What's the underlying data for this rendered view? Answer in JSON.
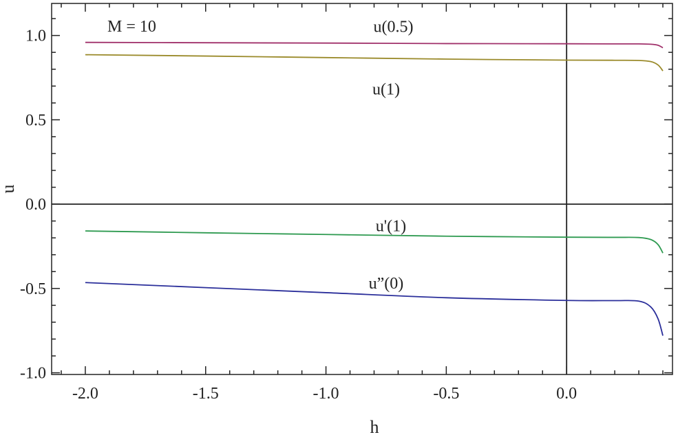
{
  "chart_data": {
    "type": "line",
    "title": "",
    "xlabel": "h",
    "ylabel": "u",
    "xlim": [
      -2.14,
      0.44
    ],
    "ylim": [
      -1.01,
      1.19
    ],
    "xticks": [
      -2.0,
      -1.5,
      -1.0,
      -0.5,
      0.0
    ],
    "xtick_labels": [
      "-2.0",
      "-1.5",
      "-1.0",
      "-0.5",
      "0.0"
    ],
    "yticks": [
      1.0,
      0.5,
      0.0,
      -0.5,
      -1.0
    ],
    "ytick_labels": [
      "1.0",
      "0.5",
      "0.0",
      "-0.5",
      "-1.0"
    ],
    "grid": false,
    "zero_lines": true,
    "annotation": "M = 10",
    "x": [
      -2.0,
      -1.5,
      -1.0,
      -0.5,
      0.0,
      0.2,
      0.3,
      0.35,
      0.38,
      0.4
    ],
    "series": [
      {
        "name": "u(0.5)",
        "color": "#a0306a",
        "values": [
          0.959,
          0.957,
          0.955,
          0.952,
          0.951,
          0.95,
          0.95,
          0.948,
          0.942,
          0.927
        ]
      },
      {
        "name": "u(1)",
        "color": "#9a8a2a",
        "values": [
          0.886,
          0.878,
          0.869,
          0.86,
          0.854,
          0.853,
          0.852,
          0.845,
          0.825,
          0.79
        ]
      },
      {
        "name": "u'(1)",
        "color": "#2e9a50",
        "values": [
          -0.159,
          -0.17,
          -0.18,
          -0.19,
          -0.196,
          -0.197,
          -0.198,
          -0.21,
          -0.24,
          -0.29
        ]
      },
      {
        "name": "u”(0)",
        "color": "#2a2e9a",
        "values": [
          -0.465,
          -0.495,
          -0.525,
          -0.555,
          -0.571,
          -0.572,
          -0.575,
          -0.61,
          -0.68,
          -0.78
        ]
      }
    ]
  }
}
